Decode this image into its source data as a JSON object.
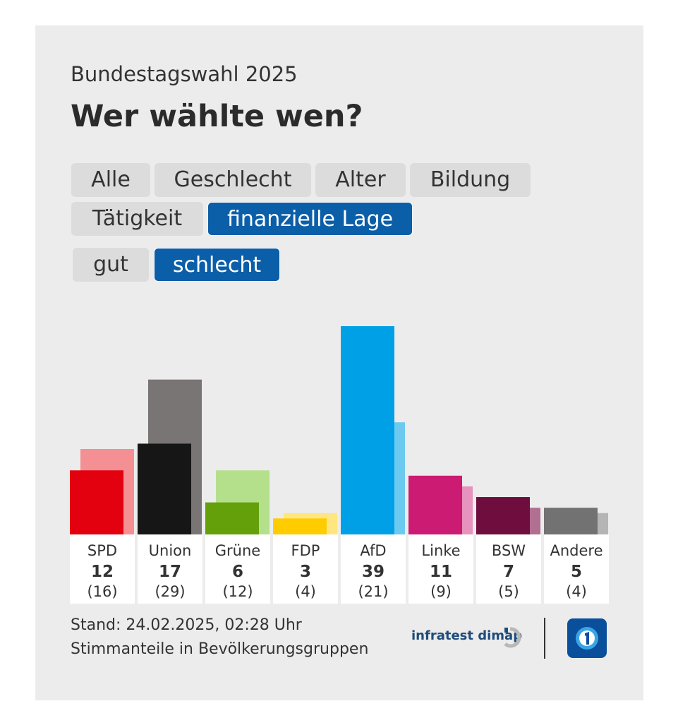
{
  "header": {
    "subtitle": "Bundestagswahl 2025",
    "title": "Wer wählte wen?"
  },
  "tabs": [
    {
      "label": "Alle",
      "active": false
    },
    {
      "label": "Geschlecht",
      "active": false
    },
    {
      "label": "Alter",
      "active": false
    },
    {
      "label": "Bildung",
      "active": false
    },
    {
      "label": "Tätigkeit",
      "active": false
    },
    {
      "label": "finanzielle Lage",
      "active": true
    }
  ],
  "subtabs": [
    {
      "label": "gut",
      "active": false
    },
    {
      "label": "schlecht",
      "active": true
    }
  ],
  "chart_data": {
    "type": "bar",
    "categories": [
      "SPD",
      "Union",
      "Grüne",
      "FDP",
      "AfD",
      "Linke",
      "BSW",
      "Andere"
    ],
    "series": [
      {
        "values": [
          12,
          17,
          6,
          3,
          39,
          11,
          7,
          5
        ]
      },
      {
        "values": [
          16,
          29,
          12,
          4,
          21,
          9,
          5,
          4
        ]
      }
    ],
    "comparison_labels": [
      "(16)",
      "(29)",
      "(12)",
      "(4)",
      "(21)",
      "(9)",
      "(5)",
      "(4)"
    ],
    "colors": [
      "#e3000f",
      "#161616",
      "#64a00a",
      "#ffcc00",
      "#00a0e6",
      "#cc1b72",
      "#6e0d3e",
      "#727272"
    ],
    "comparison_colors": [
      "#f48f93",
      "#797575",
      "#b4e08c",
      "#ffe680",
      "#6ccaf1",
      "#e693bd",
      "#b16f91",
      "#b5b5b5"
    ],
    "ylim": [
      0,
      39
    ],
    "legend": "none"
  },
  "footer": {
    "stand": "Stand: 24.02.2025, 02:28 Uhr",
    "note": "Stimmanteile in Bevölkerungsgruppen",
    "source": "infratest dimap"
  }
}
